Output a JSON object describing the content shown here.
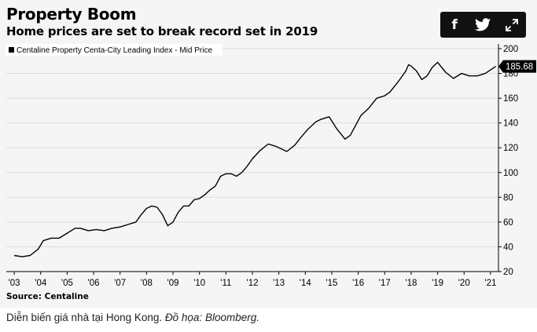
{
  "chart_data": {
    "type": "line",
    "title": "Property Boom",
    "subtitle": "Home prices are set to break record set in 2019",
    "series": [
      {
        "name": "Centaline Property Centa-City Leading Index - Mid Price",
        "color": "#000000",
        "last_value_label": "185.68",
        "x": [
          2003.0,
          2003.3,
          2003.6,
          2003.9,
          2004.1,
          2004.4,
          2004.7,
          2005.0,
          2005.3,
          2005.5,
          2005.8,
          2006.1,
          2006.4,
          2006.7,
          2007.0,
          2007.3,
          2007.6,
          2007.8,
          2008.0,
          2008.2,
          2008.4,
          2008.6,
          2008.8,
          2009.0,
          2009.2,
          2009.4,
          2009.6,
          2009.8,
          2010.0,
          2010.2,
          2010.4,
          2010.6,
          2010.8,
          2011.0,
          2011.2,
          2011.4,
          2011.6,
          2011.8,
          2012.0,
          2012.3,
          2012.6,
          2012.9,
          2013.1,
          2013.3,
          2013.6,
          2013.9,
          2014.1,
          2014.4,
          2014.6,
          2014.9,
          2015.2,
          2015.5,
          2015.7,
          2015.9,
          2016.1,
          2016.4,
          2016.7,
          2017.0,
          2017.2,
          2017.5,
          2017.8,
          2017.9,
          2018.0,
          2018.2,
          2018.4,
          2018.6,
          2018.8,
          2019.0,
          2019.3,
          2019.6,
          2019.9,
          2020.2,
          2020.5,
          2020.8,
          2021.2
        ],
        "y": [
          33,
          32,
          33,
          38,
          45,
          47,
          47,
          51,
          55,
          55,
          53,
          54,
          53,
          55,
          56,
          58,
          60,
          66,
          71,
          73,
          72,
          66,
          57,
          60,
          68,
          73,
          73,
          78,
          79,
          82,
          86,
          89,
          97,
          99,
          99,
          97,
          100,
          105,
          111,
          118,
          123,
          121,
          119,
          117,
          122,
          130,
          135,
          141,
          143,
          145,
          135,
          127,
          130,
          138,
          146,
          152,
          160,
          162,
          165,
          173,
          182,
          187,
          186,
          182,
          175,
          178,
          185,
          189,
          181,
          176,
          180,
          178,
          178,
          180,
          185.68
        ]
      }
    ],
    "x_ticks": [
      "'03",
      "'04",
      "'05",
      "'06",
      "'07",
      "'08",
      "'09",
      "'10",
      "'11",
      "'12",
      "'13",
      "'14",
      "'15",
      "'16",
      "'17",
      "'18",
      "'19",
      "'20",
      "'21"
    ],
    "y_ticks": [
      20,
      40,
      60,
      80,
      100,
      120,
      140,
      160,
      180,
      200
    ],
    "xlim": [
      2002.7,
      2021.3
    ],
    "ylim": [
      20,
      200
    ],
    "legend_position": "top-left",
    "grid": "horizontal",
    "y_axis_side": "right",
    "source": "Source: Centaline"
  },
  "share": {
    "facebook": "f",
    "twitter": "twitter-bird",
    "expand": "expand-arrows"
  },
  "caption": {
    "text": "Diễn biến giá nhà tại Hong Kong. ",
    "credit": "Đồ họa: Bloomberg."
  }
}
